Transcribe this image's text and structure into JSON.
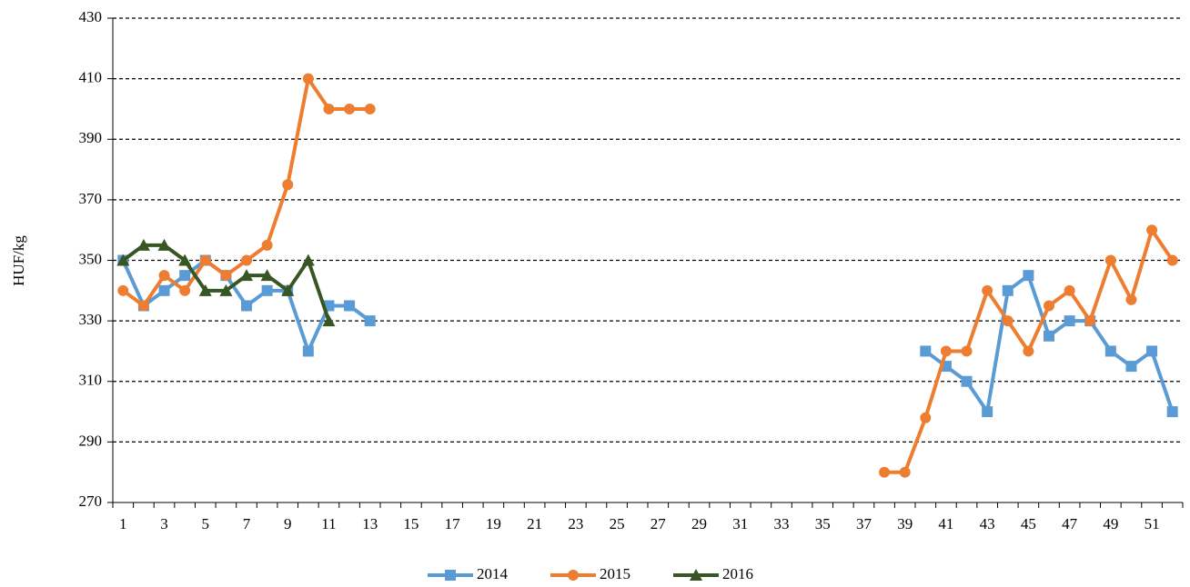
{
  "chart_data": {
    "type": "line",
    "y_label": "HUF/kg",
    "categories": [
      1,
      null,
      3,
      null,
      5,
      null,
      7,
      null,
      9,
      null,
      11,
      null,
      13,
      null,
      15,
      null,
      17,
      null,
      19,
      null,
      21,
      null,
      23,
      null,
      25,
      null,
      27,
      null,
      29,
      null,
      31,
      null,
      33,
      null,
      35,
      null,
      37,
      null,
      39,
      null,
      41,
      null,
      43,
      null,
      45,
      null,
      47,
      null,
      49,
      null,
      51,
      null
    ],
    "series": [
      {
        "name": "2014",
        "color": "#5b9bd5",
        "marker": "square",
        "values": [
          350,
          335,
          340,
          345,
          350,
          345,
          335,
          340,
          340,
          320,
          335,
          335,
          330,
          null,
          null,
          null,
          null,
          null,
          null,
          null,
          null,
          null,
          null,
          null,
          null,
          null,
          null,
          null,
          null,
          null,
          null,
          null,
          null,
          null,
          null,
          null,
          null,
          null,
          null,
          320,
          315,
          310,
          300,
          340,
          345,
          325,
          330,
          330,
          320,
          315,
          320,
          300
        ]
      },
      {
        "name": "2015",
        "color": "#ed7d31",
        "marker": "circle",
        "values": [
          340,
          335,
          345,
          340,
          350,
          345,
          350,
          355,
          375,
          410,
          400,
          400,
          400,
          null,
          null,
          null,
          null,
          null,
          null,
          null,
          null,
          null,
          null,
          null,
          null,
          null,
          null,
          null,
          null,
          null,
          null,
          null,
          null,
          null,
          null,
          null,
          null,
          280,
          280,
          298,
          320,
          320,
          340,
          330,
          320,
          335,
          340,
          330,
          350,
          337,
          360,
          350
        ]
      },
      {
        "name": "2016",
        "color": "#375623",
        "marker": "triangle",
        "values": [
          350,
          355,
          355,
          350,
          340,
          340,
          345,
          345,
          340,
          350,
          330,
          null,
          null,
          null,
          null,
          null,
          null,
          null,
          null,
          null,
          null,
          null,
          null,
          null,
          null,
          null,
          null,
          null,
          null,
          null,
          null,
          null,
          null,
          null,
          null,
          null,
          null,
          null,
          null,
          null,
          null,
          null,
          null,
          null,
          null,
          null,
          null,
          null,
          null,
          null,
          null,
          null
        ]
      }
    ],
    "ylim": [
      270,
      430
    ],
    "yticks": [
      270,
      290,
      310,
      330,
      350,
      370,
      390,
      410,
      430
    ],
    "grid": true,
    "legend": "bottom"
  }
}
